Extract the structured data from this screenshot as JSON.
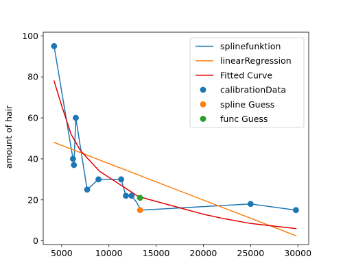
{
  "chart_data": {
    "type": "line",
    "title": "",
    "xlabel": "",
    "ylabel": "amount of hair",
    "xlim": [
      3050,
      31150
    ],
    "ylim": [
      -1.8,
      101.8
    ],
    "xticks": [
      5000,
      10000,
      15000,
      20000,
      25000,
      30000
    ],
    "yticks": [
      0,
      20,
      40,
      60,
      80,
      100
    ],
    "grid": false,
    "legend_position": "top-right",
    "series": [
      {
        "name": "splinefunktion",
        "type": "line",
        "color": "#1f77b4",
        "x": [
          4200,
          6200,
          6300,
          6500,
          6600,
          7700,
          8900,
          11300,
          11800,
          12400,
          12900,
          13400,
          25000,
          29800
        ],
        "y": [
          95,
          40,
          37,
          60,
          57,
          25,
          30,
          30,
          22,
          22,
          19,
          15,
          18,
          15
        ]
      },
      {
        "name": "linearRegression",
        "type": "line",
        "color": "#ff7f0e",
        "x": [
          4200,
          29800
        ],
        "y": [
          48,
          2.5
        ]
      },
      {
        "name": "Fitted Curve",
        "type": "line",
        "color": "#e00000",
        "x": [
          4200,
          5000,
          6000,
          7000,
          8000,
          9000,
          10000,
          11000,
          12000,
          13000,
          14000,
          16000,
          18000,
          20000,
          22000,
          25000,
          29800
        ],
        "y": [
          78,
          66,
          52,
          44,
          39,
          34,
          31,
          28,
          25,
          22,
          20.5,
          18,
          15.5,
          13,
          11,
          8.5,
          6
        ]
      },
      {
        "name": "calibrationData",
        "type": "scatter",
        "color": "#1f77b4",
        "x": [
          4200,
          6200,
          6300,
          6500,
          7700,
          8900,
          11300,
          11800,
          12400,
          25000,
          29800
        ],
        "y": [
          95,
          40,
          37,
          60,
          25,
          30,
          30,
          22,
          22,
          18,
          15
        ]
      },
      {
        "name": "spline Guess",
        "type": "scatter",
        "color": "#ff7f0e",
        "x": [
          13300
        ],
        "y": [
          15
        ]
      },
      {
        "name": "func Guess",
        "type": "scatter",
        "color": "#2ca02c",
        "x": [
          13300
        ],
        "y": [
          21
        ]
      }
    ]
  }
}
